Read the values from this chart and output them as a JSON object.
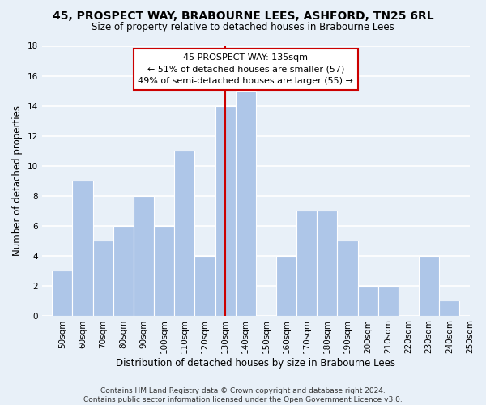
{
  "title": "45, PROSPECT WAY, BRABOURNE LEES, ASHFORD, TN25 6RL",
  "subtitle": "Size of property relative to detached houses in Brabourne Lees",
  "xlabel": "Distribution of detached houses by size in Brabourne Lees",
  "ylabel": "Number of detached properties",
  "footnote1": "Contains HM Land Registry data © Crown copyright and database right 2024.",
  "footnote2": "Contains public sector information licensed under the Open Government Licence v3.0.",
  "bin_labels": [
    "50sqm",
    "60sqm",
    "70sqm",
    "80sqm",
    "90sqm",
    "100sqm",
    "110sqm",
    "120sqm",
    "130sqm",
    "140sqm",
    "150sqm",
    "160sqm",
    "170sqm",
    "180sqm",
    "190sqm",
    "200sqm",
    "210sqm",
    "220sqm",
    "230sqm",
    "240sqm",
    "250sqm"
  ],
  "bin_edges": [
    50,
    60,
    70,
    80,
    90,
    100,
    110,
    120,
    130,
    140,
    150,
    160,
    170,
    180,
    190,
    200,
    210,
    220,
    230,
    240,
    250
  ],
  "counts": [
    3,
    9,
    5,
    6,
    8,
    6,
    11,
    4,
    14,
    15,
    0,
    4,
    7,
    7,
    5,
    2,
    2,
    0,
    4,
    1,
    0
  ],
  "bar_color": "#aec6e8",
  "bar_edge_color": "#ffffff",
  "property_line_x": 135,
  "property_line_color": "#cc0000",
  "annotation_title": "45 PROSPECT WAY: 135sqm",
  "annotation_line1": "← 51% of detached houses are smaller (57)",
  "annotation_line2": "49% of semi-detached houses are larger (55) →",
  "annotation_box_color": "#ffffff",
  "annotation_box_edge_color": "#cc0000",
  "ylim": [
    0,
    18
  ],
  "yticks": [
    0,
    2,
    4,
    6,
    8,
    10,
    12,
    14,
    16,
    18
  ],
  "background_color": "#e8f0f8",
  "grid_color": "#ffffff",
  "title_fontsize": 10,
  "subtitle_fontsize": 8.5,
  "axis_label_fontsize": 8.5,
  "tick_fontsize": 7.5,
  "footnote_fontsize": 6.5,
  "annotation_fontsize": 8
}
